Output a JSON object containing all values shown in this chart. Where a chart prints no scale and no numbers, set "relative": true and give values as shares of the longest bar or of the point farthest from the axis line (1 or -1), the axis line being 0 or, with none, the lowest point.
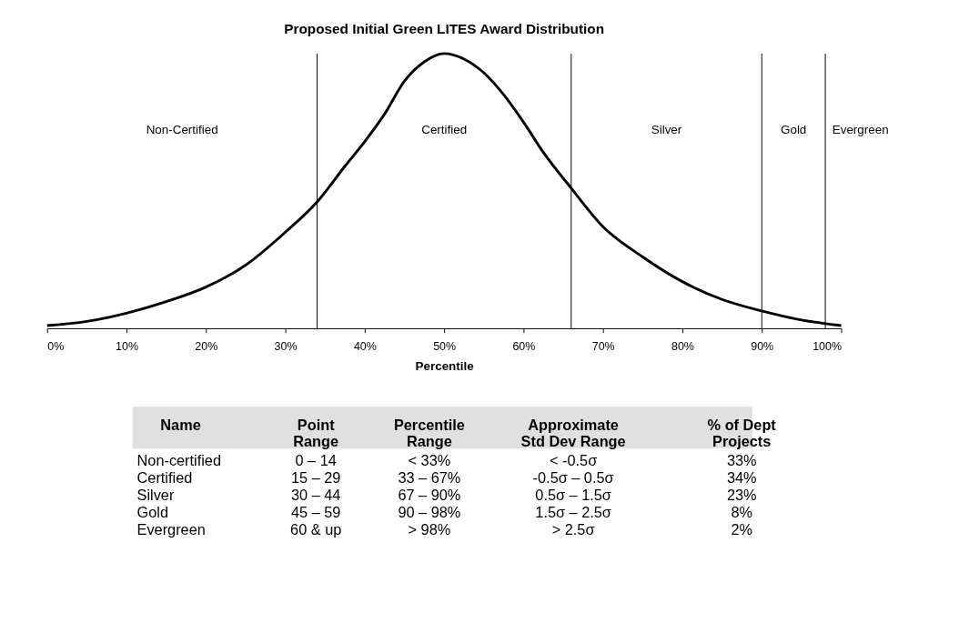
{
  "chart_data": {
    "type": "line",
    "title": "Proposed Initial Green LITES Award Distribution",
    "xlabel": "Percentile",
    "relative": true,
    "x": [
      0,
      5,
      10,
      15,
      20,
      25,
      30,
      34,
      37.5,
      40,
      42.5,
      45,
      47.5,
      50,
      52.5,
      55,
      57.5,
      60,
      62.5,
      66,
      70,
      75,
      80,
      85,
      90,
      95,
      100
    ],
    "series": [
      {
        "color": "#000000",
        "values": [
          0.01,
          0.025,
          0.055,
          0.097,
          0.15,
          0.23,
          0.35,
          0.46,
          0.59,
          0.68,
          0.78,
          0.9,
          0.97,
          1.0,
          0.98,
          0.93,
          0.85,
          0.75,
          0.64,
          0.51,
          0.37,
          0.26,
          0.17,
          0.105,
          0.063,
          0.03,
          0.01
        ]
      }
    ],
    "xlim": [
      0,
      100
    ],
    "xticks": [
      {
        "value": 0,
        "label": "0%"
      },
      {
        "value": 10,
        "label": "10%"
      },
      {
        "value": 20,
        "label": "20%"
      },
      {
        "value": 30,
        "label": "30%"
      },
      {
        "value": 40,
        "label": "40%"
      },
      {
        "value": 50,
        "label": "50%"
      },
      {
        "value": 60,
        "label": "60%"
      },
      {
        "value": 70,
        "label": "70%"
      },
      {
        "value": 80,
        "label": "80%"
      },
      {
        "value": 90,
        "label": "90%"
      },
      {
        "value": 100,
        "label": "100%"
      }
    ],
    "ref_lines": [
      {
        "axis": "x",
        "value": 34,
        "color": "#000000"
      },
      {
        "axis": "x",
        "value": 66,
        "color": "#000000"
      },
      {
        "axis": "x",
        "value": 90,
        "color": "#000000"
      },
      {
        "axis": "x",
        "value": 98,
        "color": "#000000"
      }
    ],
    "grid": false,
    "marker": "none",
    "line_style": "solid",
    "legend": false,
    "annotations": [
      "Non-Certified",
      "Certified",
      "Silver",
      "Gold",
      "Evergreen",
      "Name",
      "Point\nRange",
      "Percentile\nRange",
      "Approximate\nStd Dev Range",
      "% of Dept\nProjects",
      "Non-certified",
      "0 – 14",
      "< 33%",
      "< -0.5σ",
      "33%",
      "Certified",
      "15 – 29",
      "33 – 67%",
      "-0.5σ – 0.5σ",
      "34%",
      "Silver",
      "30 – 44",
      "67 – 90%",
      "0.5σ – 1.5σ",
      "23%",
      "Gold",
      "45 – 59",
      "90 – 98%",
      "1.5σ – 2.5σ",
      "8%",
      "Evergreen",
      "60 & up",
      "> 98%",
      "> 2.5σ",
      "2%"
    ]
  }
}
